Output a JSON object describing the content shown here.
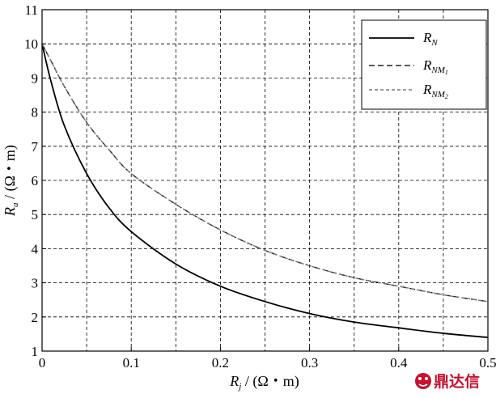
{
  "chart_data": {
    "type": "line",
    "xlim": [
      0,
      0.5
    ],
    "ylim": [
      1,
      11
    ],
    "x_ticks": [
      0,
      0.1,
      0.2,
      0.3,
      0.4,
      0.5
    ],
    "x_tick_labels": [
      "0",
      "0.1",
      "0.2",
      "0.3",
      "0.4",
      "0.5"
    ],
    "y_ticks": [
      1,
      2,
      3,
      4,
      5,
      6,
      7,
      8,
      9,
      10,
      11
    ],
    "y_tick_labels": [
      "1",
      "2",
      "3",
      "4",
      "5",
      "6",
      "7",
      "8",
      "9",
      "10",
      "11"
    ],
    "xlabel": {
      "main": "R",
      "sub": "j",
      "unit": " / (Ω・m)"
    },
    "ylabel": {
      "main": "R",
      "sub": "a",
      "unit": " / (Ω・m)"
    },
    "grid": true,
    "grid_style": "dashed",
    "legend_position": "top-right",
    "x": [
      0,
      0.01,
      0.025,
      0.05,
      0.075,
      0.1,
      0.15,
      0.2,
      0.25,
      0.3,
      0.35,
      0.4,
      0.45,
      0.5
    ],
    "series": [
      {
        "name": "R_N",
        "legend": {
          "main": "R",
          "sub": "N",
          "sub2": ""
        },
        "color": "#000000",
        "dash": "",
        "values": [
          10.0,
          8.9,
          7.6,
          6.2,
          5.2,
          4.5,
          3.55,
          2.9,
          2.45,
          2.1,
          1.85,
          1.68,
          1.52,
          1.4
        ]
      },
      {
        "name": "R_NM1",
        "legend": {
          "main": "R",
          "sub": "NM",
          "sub2": "1"
        },
        "color": "#222222",
        "dash": "7,4",
        "values": [
          10.0,
          9.5,
          8.75,
          7.7,
          6.9,
          6.2,
          5.3,
          4.55,
          3.95,
          3.5,
          3.15,
          2.9,
          2.65,
          2.45
        ]
      },
      {
        "name": "R_NM2",
        "legend": {
          "main": "R",
          "sub": "NM",
          "sub2": "2"
        },
        "color": "#777777",
        "dash": "4,3",
        "values": [
          10.0,
          9.5,
          8.75,
          7.7,
          6.9,
          6.2,
          5.3,
          4.55,
          3.95,
          3.5,
          3.15,
          2.9,
          2.65,
          2.45
        ]
      }
    ]
  },
  "watermark": {
    "text": "鼎达信",
    "color": "#c8102e"
  }
}
